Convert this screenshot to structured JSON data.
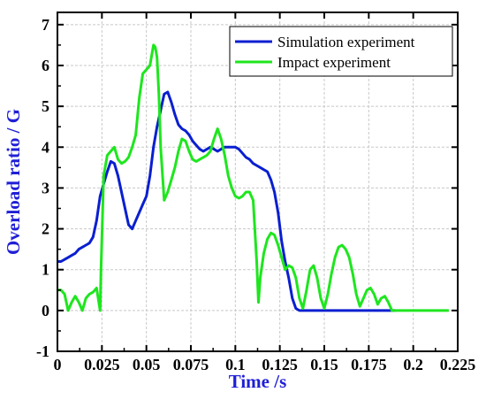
{
  "chart_data": {
    "type": "line",
    "xlabel": "Time /s",
    "ylabel": "Overload ratio / G",
    "xlim": [
      0,
      0.225
    ],
    "ylim": [
      -1,
      7.3
    ],
    "grid": true,
    "legend_position": "top-right",
    "x_ticks": [
      {
        "value": 0,
        "label": "0"
      },
      {
        "value": 0.025,
        "label": "0.025"
      },
      {
        "value": 0.05,
        "label": "0.05"
      },
      {
        "value": 0.075,
        "label": "0.075"
      },
      {
        "value": 0.1,
        "label": "0.1"
      },
      {
        "value": 0.125,
        "label": "0.125"
      },
      {
        "value": 0.15,
        "label": "0.15"
      },
      {
        "value": 0.175,
        "label": "0.175"
      },
      {
        "value": 0.2,
        "label": "0.2"
      },
      {
        "value": 0.225,
        "label": "0.225"
      }
    ],
    "y_ticks": [
      {
        "value": -1,
        "label": "-1"
      },
      {
        "value": 0,
        "label": "0"
      },
      {
        "value": 1,
        "label": "1"
      },
      {
        "value": 2,
        "label": "2"
      },
      {
        "value": 3,
        "label": "3"
      },
      {
        "value": 4,
        "label": "4"
      },
      {
        "value": 5,
        "label": "5"
      },
      {
        "value": 6,
        "label": "6"
      },
      {
        "value": 7,
        "label": "7"
      }
    ],
    "colors": {
      "axis": "#000000",
      "grid": "#c8c8c8",
      "ylabel": "#1f1fd6",
      "xlabel": "#1f1fd6"
    },
    "series": [
      {
        "name": "Simulation experiment",
        "color": "#0a1fd0",
        "x": [
          0,
          0.002,
          0.004,
          0.006,
          0.008,
          0.01,
          0.012,
          0.014,
          0.016,
          0.018,
          0.02,
          0.022,
          0.024,
          0.026,
          0.028,
          0.03,
          0.032,
          0.034,
          0.036,
          0.038,
          0.04,
          0.042,
          0.044,
          0.046,
          0.048,
          0.05,
          0.052,
          0.054,
          0.056,
          0.058,
          0.06,
          0.062,
          0.064,
          0.066,
          0.068,
          0.07,
          0.072,
          0.074,
          0.076,
          0.078,
          0.08,
          0.082,
          0.084,
          0.086,
          0.088,
          0.09,
          0.092,
          0.094,
          0.096,
          0.098,
          0.1,
          0.102,
          0.104,
          0.106,
          0.108,
          0.11,
          0.112,
          0.114,
          0.116,
          0.118,
          0.12,
          0.122,
          0.124,
          0.126,
          0.128,
          0.13,
          0.132,
          0.134,
          0.136,
          0.14,
          0.15,
          0.16,
          0.17,
          0.18,
          0.19
        ],
        "y": [
          1.2,
          1.2,
          1.25,
          1.3,
          1.35,
          1.4,
          1.5,
          1.55,
          1.6,
          1.65,
          1.8,
          2.2,
          2.8,
          3.1,
          3.4,
          3.65,
          3.6,
          3.3,
          2.9,
          2.5,
          2.1,
          2.0,
          2.2,
          2.4,
          2.6,
          2.8,
          3.3,
          4.0,
          4.5,
          4.9,
          5.3,
          5.35,
          5.1,
          4.8,
          4.55,
          4.45,
          4.4,
          4.3,
          4.15,
          4.05,
          3.95,
          3.9,
          3.95,
          4.0,
          3.95,
          3.9,
          3.95,
          4.0,
          4.0,
          4.0,
          4.0,
          3.95,
          3.85,
          3.75,
          3.7,
          3.6,
          3.55,
          3.5,
          3.45,
          3.4,
          3.2,
          2.9,
          2.4,
          1.7,
          1.2,
          0.8,
          0.3,
          0.05,
          0,
          0,
          0,
          0,
          0,
          0,
          0
        ]
      },
      {
        "name": "Impact experiment",
        "color": "#1ee61e",
        "x": [
          0,
          0.002,
          0.004,
          0.006,
          0.008,
          0.01,
          0.012,
          0.014,
          0.016,
          0.018,
          0.02,
          0.022,
          0.024,
          0.0245,
          0.026,
          0.028,
          0.03,
          0.032,
          0.034,
          0.036,
          0.038,
          0.04,
          0.042,
          0.044,
          0.046,
          0.048,
          0.05,
          0.052,
          0.054,
          0.055,
          0.056,
          0.057,
          0.058,
          0.06,
          0.062,
          0.064,
          0.066,
          0.068,
          0.07,
          0.072,
          0.074,
          0.076,
          0.078,
          0.08,
          0.082,
          0.084,
          0.086,
          0.088,
          0.09,
          0.092,
          0.094,
          0.096,
          0.098,
          0.1,
          0.102,
          0.104,
          0.106,
          0.108,
          0.11,
          0.112,
          0.113,
          0.114,
          0.116,
          0.118,
          0.12,
          0.122,
          0.124,
          0.126,
          0.128,
          0.13,
          0.132,
          0.134,
          0.136,
          0.138,
          0.14,
          0.142,
          0.144,
          0.146,
          0.148,
          0.15,
          0.152,
          0.154,
          0.156,
          0.158,
          0.16,
          0.162,
          0.164,
          0.166,
          0.168,
          0.17,
          0.172,
          0.174,
          0.176,
          0.178,
          0.18,
          0.182,
          0.184,
          0.186,
          0.188,
          0.19,
          0.2,
          0.21,
          0.22
        ],
        "y": [
          0.5,
          0.5,
          0.4,
          0.0,
          0.2,
          0.35,
          0.2,
          0.0,
          0.3,
          0.4,
          0.45,
          0.55,
          0.0,
          1.0,
          3.3,
          3.8,
          3.9,
          4.0,
          3.7,
          3.6,
          3.65,
          3.75,
          4.0,
          4.3,
          5.2,
          5.8,
          5.9,
          6.0,
          6.5,
          6.45,
          6.2,
          5.3,
          4.0,
          2.7,
          2.9,
          3.2,
          3.5,
          3.9,
          4.2,
          4.15,
          3.9,
          3.7,
          3.65,
          3.7,
          3.75,
          3.8,
          3.9,
          4.2,
          4.45,
          4.2,
          3.8,
          3.3,
          3.0,
          2.8,
          2.75,
          2.8,
          2.9,
          2.9,
          2.7,
          1.2,
          0.2,
          0.8,
          1.4,
          1.75,
          1.9,
          1.85,
          1.6,
          1.3,
          1.0,
          1.1,
          1.05,
          0.8,
          0.3,
          0.05,
          0.5,
          1.0,
          1.1,
          0.8,
          0.3,
          0.05,
          0.4,
          0.9,
          1.3,
          1.55,
          1.6,
          1.5,
          1.3,
          0.9,
          0.4,
          0.1,
          0.3,
          0.5,
          0.55,
          0.4,
          0.15,
          0.3,
          0.35,
          0.2,
          0.0,
          0.0,
          0.0,
          0.0,
          0.0
        ]
      }
    ]
  }
}
